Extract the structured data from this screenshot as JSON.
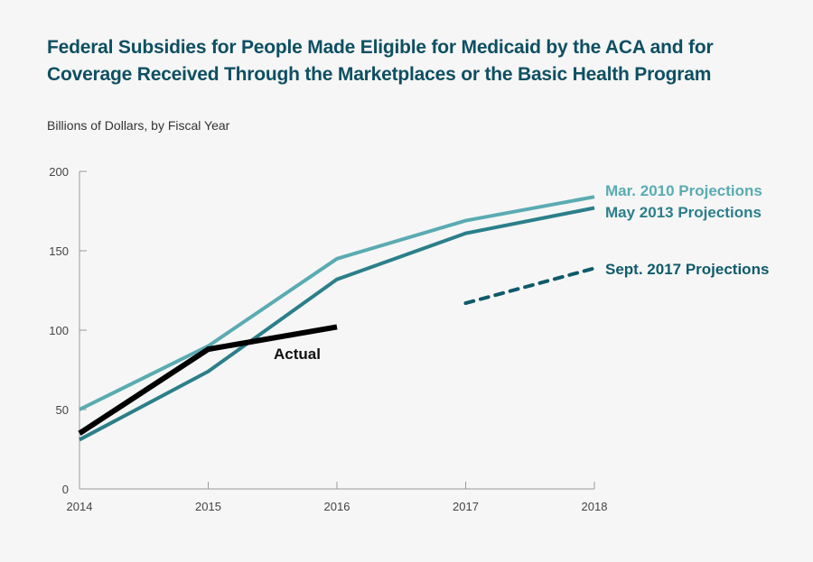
{
  "chart_data": {
    "type": "line",
    "title": "Federal Subsidies for People Made Eligible for Medicaid by the ACA and for Coverage Received Through the Marketplaces or the Basic Health Program",
    "ylabel": "Billions of Dollars, by Fiscal Year",
    "xlabel": "",
    "x": [
      2014,
      2015,
      2016,
      2017,
      2018
    ],
    "ylim": [
      0,
      200
    ],
    "yticks": [
      0,
      50,
      100,
      150,
      200
    ],
    "grid": false,
    "series": [
      {
        "name": "Mar. 2010 Projections",
        "color": "#5aabb2",
        "style": "solid",
        "x": [
          2014,
          2015,
          2016,
          2017,
          2018
        ],
        "values": [
          50,
          90,
          145,
          169,
          184
        ]
      },
      {
        "name": "May 2013 Projections",
        "color": "#2b7f8a",
        "style": "solid",
        "x": [
          2014,
          2015,
          2016,
          2017,
          2018
        ],
        "values": [
          31,
          74,
          132,
          161,
          177
        ]
      },
      {
        "name": "Sept. 2017 Projections",
        "color": "#0f5a6b",
        "style": "dashed",
        "x": [
          2017,
          2018
        ],
        "values": [
          117,
          139
        ]
      },
      {
        "name": "Actual",
        "color": "#000000",
        "style": "solid",
        "x": [
          2014,
          2015,
          2016
        ],
        "values": [
          35,
          88,
          102
        ]
      }
    ]
  }
}
